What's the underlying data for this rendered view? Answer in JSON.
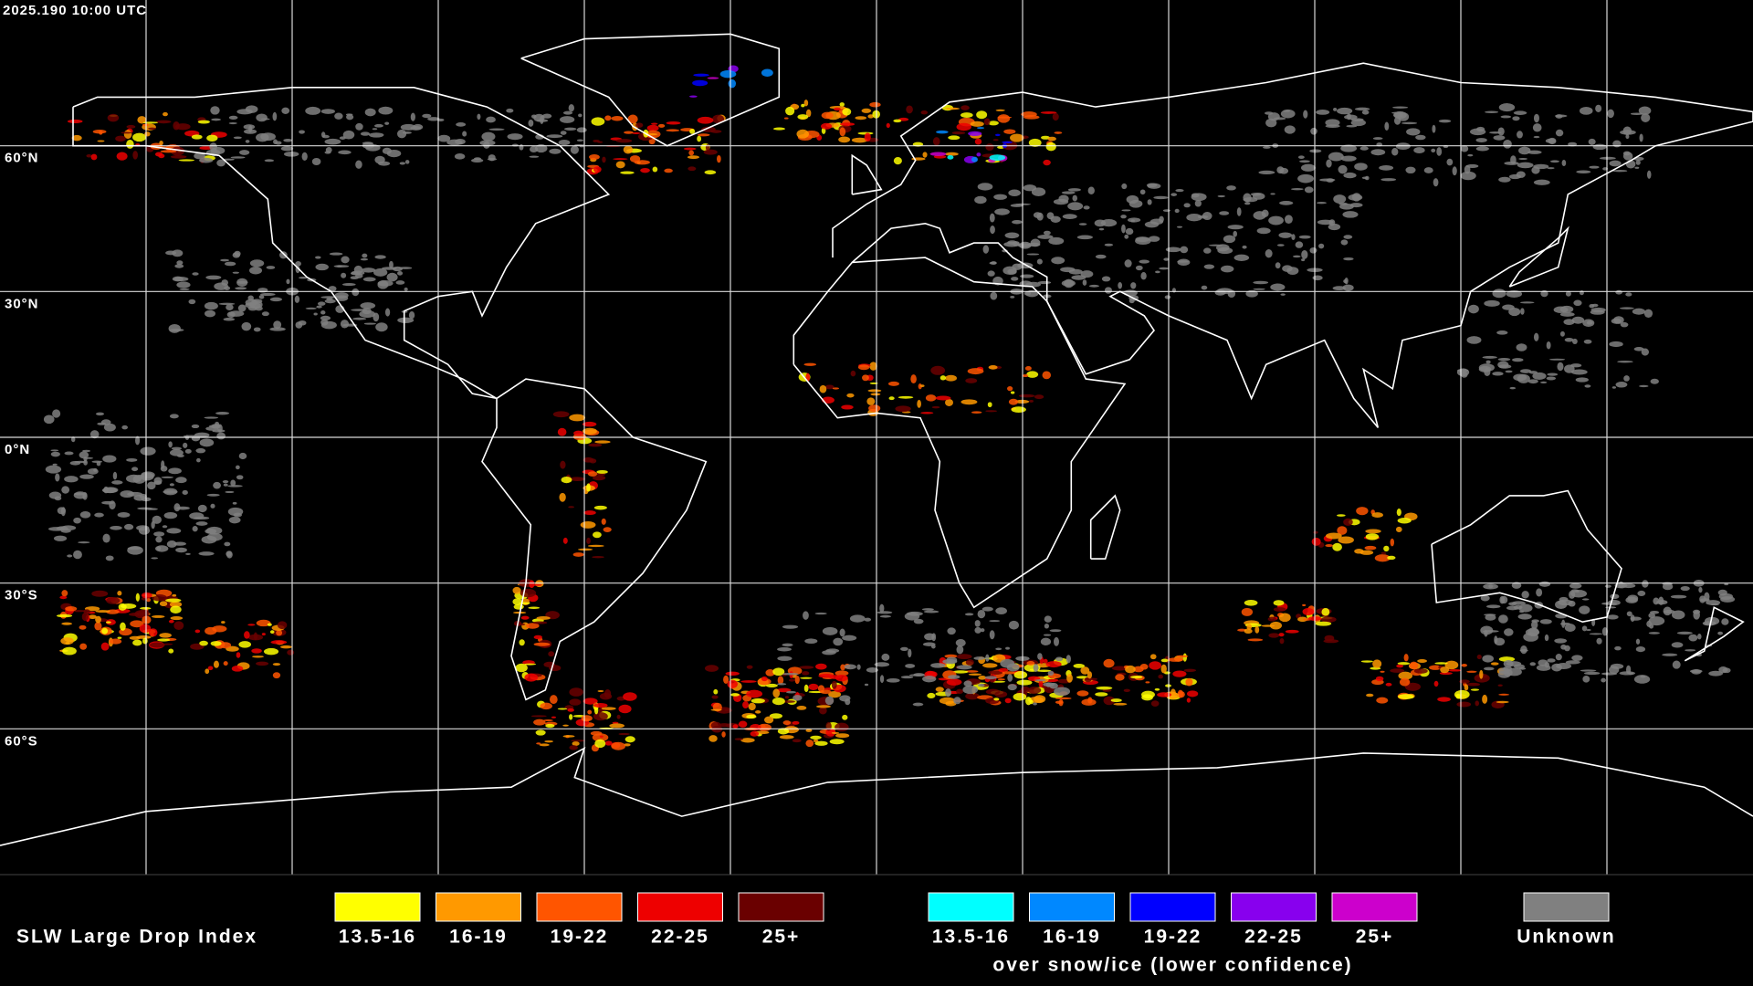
{
  "timestamp": "2025.190 10:00 UTC",
  "latitude_labels": [
    "60°N",
    "30°N",
    "0°N",
    "30°S",
    "60°S"
  ],
  "legend": {
    "title": "SLW Large Drop Index",
    "groups": [
      {
        "items": [
          {
            "label": "13.5-16",
            "color": "#ffff00"
          },
          {
            "label": "16-19",
            "color": "#ff9900"
          },
          {
            "label": "19-22",
            "color": "#ff5500"
          },
          {
            "label": "22-25",
            "color": "#ee0000"
          },
          {
            "label": "25+",
            "color": "#6a0000"
          }
        ]
      },
      {
        "items": [
          {
            "label": "13.5-16",
            "color": "#00ffff"
          },
          {
            "label": "16-19",
            "color": "#0088ff"
          },
          {
            "label": "19-22",
            "color": "#0000ff"
          },
          {
            "label": "22-25",
            "color": "#8800ee"
          },
          {
            "label": "25+",
            "color": "#cc00cc"
          }
        ],
        "caption": "over snow/ice (lower confidence)"
      },
      {
        "items": [
          {
            "label": "Unknown",
            "color": "#808080"
          }
        ]
      }
    ]
  }
}
